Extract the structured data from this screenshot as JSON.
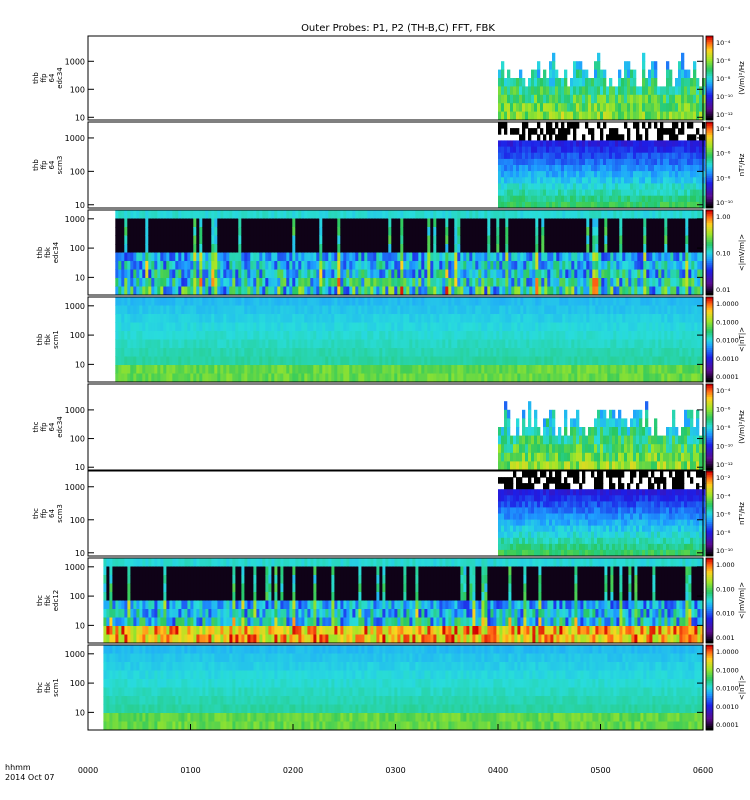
{
  "chart_data": {
    "type": "heatmap",
    "title": "Outer Probes: P1, P2 (TH-B,C) FFT, FBK",
    "date_label": "2014 Oct 07",
    "time_axis_label": "hhmm",
    "x_ticks": [
      "0000",
      "0100",
      "0200",
      "0300",
      "0400",
      "0500",
      "0600"
    ],
    "xlim_minutes": [
      0,
      360
    ],
    "panels": [
      {
        "ylabel": [
          "thb",
          "ffp",
          "64",
          "edc34"
        ],
        "yticks": [
          "10",
          "100",
          "1000"
        ],
        "ylog": true,
        "ylim": [
          8,
          8000
        ],
        "zlabel": "(V/m)²/Hz",
        "zticks": [
          "10⁻⁴",
          "10⁻⁶",
          "10⁻⁸",
          "10⁻¹⁰",
          "10⁻¹²"
        ],
        "data_start_min": 240,
        "data_end_min": 360,
        "style": "spiky"
      },
      {
        "ylabel": [
          "thb",
          "ffp",
          "64",
          "scm3"
        ],
        "yticks": [
          "10",
          "100",
          "1000"
        ],
        "ylog": true,
        "ylim": [
          8,
          3000
        ],
        "zlabel": "nT²/Hz",
        "zticks": [
          "10⁻⁴",
          "10⁻⁶",
          "10⁻⁸",
          "10⁻¹⁰"
        ],
        "data_start_min": 240,
        "data_end_min": 360,
        "style": "banded"
      },
      {
        "ylabel": [
          "thb",
          "fbk",
          "edc34"
        ],
        "yticks": [
          "10",
          "100",
          "1000"
        ],
        "ylog": true,
        "ylim": [
          2.5,
          2000
        ],
        "zlabel": "<|mV/m|>",
        "zticks": [
          "1.00",
          "0.10",
          "0.01"
        ],
        "data_start_min": 16,
        "data_end_min": 360,
        "style": "fbk-e"
      },
      {
        "ylabel": [
          "thb",
          "fbk",
          "scm1"
        ],
        "yticks": [
          "10",
          "100",
          "1000"
        ],
        "ylog": true,
        "ylim": [
          2.5,
          2000
        ],
        "zlabel": "<|nT|>",
        "zticks": [
          "1.0000",
          "0.1000",
          "0.0100",
          "0.0010",
          "0.0001"
        ],
        "data_start_min": 16,
        "data_end_min": 360,
        "style": "fbk-b"
      },
      {
        "ylabel": [
          "thc",
          "ffp",
          "64",
          "edc34"
        ],
        "yticks": [
          "10",
          "100",
          "1000"
        ],
        "ylog": true,
        "ylim": [
          8,
          8000
        ],
        "zlabel": "(V/m)²/Hz",
        "zticks": [
          "10⁻⁴",
          "10⁻⁶",
          "10⁻⁸",
          "10⁻¹⁰",
          "10⁻¹²"
        ],
        "data_start_min": 240,
        "data_end_min": 360,
        "style": "spiky"
      },
      {
        "ylabel": [
          "thc",
          "ffp",
          "64",
          "scm3"
        ],
        "yticks": [
          "10",
          "100",
          "1000"
        ],
        "ylog": true,
        "ylim": [
          8,
          3000
        ],
        "zlabel": "nT²/Hz",
        "zticks": [
          "10⁻²",
          "10⁻⁴",
          "10⁻⁶",
          "10⁻⁸",
          "10⁻¹⁰"
        ],
        "data_start_min": 240,
        "data_end_min": 360,
        "style": "banded"
      },
      {
        "ylabel": [
          "thc",
          "fbk",
          "edc12"
        ],
        "yticks": [
          "10",
          "100",
          "1000"
        ],
        "ylog": true,
        "ylim": [
          2.5,
          2000
        ],
        "zlabel": "<|mV/m|>",
        "zticks": [
          "1.000",
          "0.100",
          "0.010",
          "0.001"
        ],
        "data_start_min": 9,
        "data_end_min": 360,
        "style": "fbk-e2"
      },
      {
        "ylabel": [
          "thc",
          "fbk",
          "scm1"
        ],
        "yticks": [
          "10",
          "100",
          "1000"
        ],
        "ylog": true,
        "ylim": [
          2.5,
          2000
        ],
        "zlabel": "<|nT|>",
        "zticks": [
          "1.0000",
          "0.1000",
          "0.0100",
          "0.0010",
          "0.0001"
        ],
        "data_start_min": 9,
        "data_end_min": 360,
        "style": "fbk-b"
      }
    ]
  }
}
